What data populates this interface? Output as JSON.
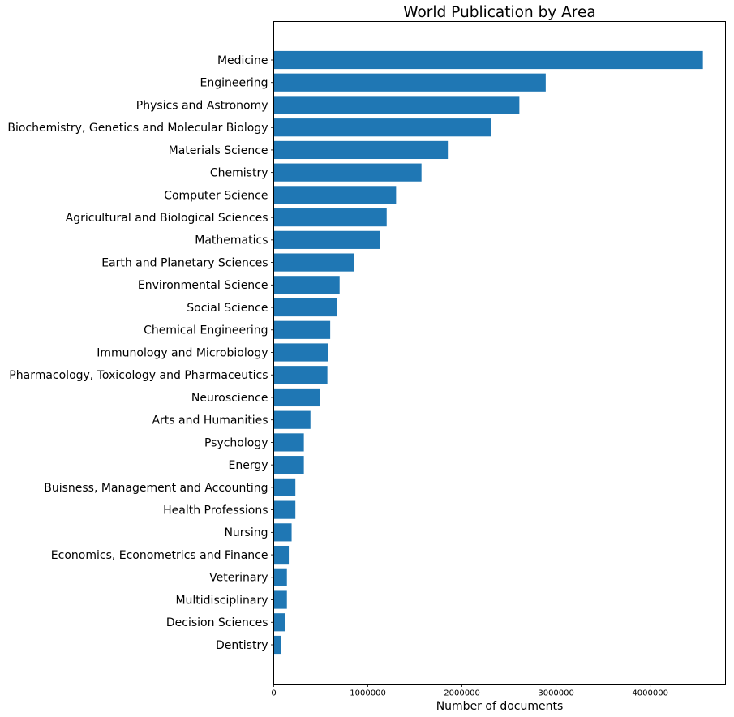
{
  "chart_data": {
    "type": "bar",
    "orientation": "horizontal",
    "title": "World Publication by Area",
    "xlabel": "Number of documents",
    "ylabel": "",
    "xlim": [
      0,
      4800000
    ],
    "xticks": [
      0,
      1000000,
      2000000,
      3000000,
      4000000
    ],
    "xtick_labels": [
      "0",
      "1000000",
      "2000000",
      "3000000",
      "4000000"
    ],
    "bar_color": "#1f77b4",
    "grid": false,
    "categories": [
      "Medicine",
      "Engineering",
      "Physics and Astronomy",
      "Biochemistry, Genetics and Molecular Biology",
      "Materials Science",
      "Chemistry",
      "Computer Science",
      "Agricultural and Biological Sciences",
      "Mathematics",
      "Earth and Planetary Sciences",
      "Environmental Science",
      "Social Science",
      "Chemical Engineering",
      "Immunology and Microbiology",
      "Pharmacology, Toxicology and Pharmaceutics",
      "Neuroscience",
      "Arts and Humanities",
      "Psychology",
      "Energy",
      "Buisness, Management and Accounting",
      "Health Professions",
      "Nursing",
      "Economics, Econometrics and Finance",
      "Veterinary",
      "Multidisciplinary",
      "Decision Sciences",
      "Dentistry"
    ],
    "values": [
      4560000,
      2890000,
      2610000,
      2310000,
      1850000,
      1570000,
      1300000,
      1200000,
      1130000,
      850000,
      700000,
      670000,
      600000,
      580000,
      570000,
      490000,
      390000,
      320000,
      320000,
      230000,
      230000,
      190000,
      160000,
      140000,
      140000,
      120000,
      75000
    ]
  }
}
